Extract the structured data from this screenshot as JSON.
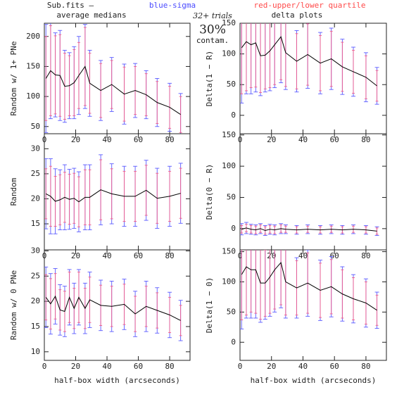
{
  "header": {
    "source": "Sub.fits  –",
    "legend_blue": "blue-sigma",
    "legend_red": "red-upper/lower quartile",
    "left_title": "average medians",
    "right_title": "delta plots",
    "trials": "32+ trials",
    "contam_pct": "30%",
    "contam": "contam."
  },
  "chart_data": [
    {
      "type": "line",
      "ylabel": "Random w/ 1+ PNe",
      "xlim": [
        0,
        93
      ],
      "xticks": [
        0,
        20,
        40,
        60,
        80
      ],
      "ylim": [
        38,
        222
      ],
      "yticks": [
        50,
        100,
        150,
        200
      ],
      "x": [
        1,
        4,
        7,
        10,
        13,
        16,
        19,
        22,
        26,
        29,
        36,
        43,
        51,
        58,
        65,
        72,
        80,
        87
      ],
      "series": [
        {
          "color": "#000000",
          "values": [
            130,
            143,
            136,
            135,
            117,
            118,
            123,
            135,
            150,
            122,
            110,
            120,
            104,
            110,
            103,
            90,
            82,
            70
          ],
          "sigma": [
            90,
            80,
            70,
            75,
            60,
            55,
            60,
            65,
            70,
            55,
            50,
            45,
            50,
            45,
            40,
            40,
            40,
            35
          ],
          "quartile": [
            70,
            75,
            65,
            68,
            55,
            50,
            55,
            55,
            65,
            50,
            45,
            40,
            45,
            40,
            35,
            35,
            35,
            30
          ]
        }
      ]
    },
    {
      "type": "line",
      "ylabel": "Delta(1 − R)",
      "xlim": [
        0,
        93
      ],
      "xticks": [
        0,
        20,
        40,
        60,
        80
      ],
      "ylim": [
        -30,
        150
      ],
      "yticks": [
        0,
        50,
        100,
        150
      ],
      "x": [
        1,
        4,
        7,
        10,
        13,
        16,
        19,
        22,
        26,
        29,
        36,
        43,
        51,
        58,
        65,
        72,
        80,
        87
      ],
      "series": [
        {
          "color": "#000000",
          "values": [
            110,
            120,
            115,
            118,
            97,
            98,
            105,
            115,
            128,
            102,
            88,
            99,
            85,
            92,
            79,
            71,
            62,
            48
          ],
          "sigma": [
            90,
            85,
            80,
            80,
            65,
            60,
            65,
            70,
            75,
            60,
            50,
            55,
            50,
            50,
            45,
            40,
            40,
            30
          ],
          "quartile": [
            75,
            80,
            70,
            72,
            60,
            55,
            60,
            65,
            70,
            55,
            45,
            50,
            45,
            45,
            40,
            35,
            35,
            25
          ]
        }
      ]
    },
    {
      "type": "line",
      "ylabel": "Random",
      "xlim": [
        0,
        93
      ],
      "xticks": [
        0,
        20,
        40,
        60,
        80
      ],
      "ylim": [
        9.8,
        33
      ],
      "yticks": [
        15,
        20,
        25,
        30
      ],
      "x": [
        1,
        4,
        7,
        10,
        13,
        16,
        19,
        22,
        26,
        29,
        36,
        43,
        51,
        58,
        65,
        72,
        80,
        87
      ],
      "series": [
        {
          "color": "#000000",
          "values": [
            21,
            20.5,
            19.5,
            19.8,
            20.3,
            19.9,
            20.1,
            19.4,
            20.3,
            20.3,
            21.8,
            21,
            20.5,
            20.5,
            21.7,
            20.1,
            20.5,
            21.1
          ],
          "sigma": [
            7,
            7.5,
            6.5,
            6,
            6.5,
            6,
            6,
            6,
            6.5,
            6.5,
            7,
            6,
            6,
            6,
            6,
            6,
            6,
            6
          ],
          "quartile": [
            5,
            6,
            5,
            5,
            5,
            5,
            5,
            5,
            5.5,
            5.5,
            6,
            5,
            5,
            5,
            5,
            5,
            5,
            5
          ]
        }
      ]
    },
    {
      "type": "line",
      "ylabel": "Delta(0 − R)",
      "xlim": [
        0,
        93
      ],
      "xticks": [
        0,
        20,
        40,
        60,
        80
      ],
      "ylim": [
        -34,
        152
      ],
      "yticks": [
        0,
        50,
        100,
        150
      ],
      "x": [
        1,
        4,
        7,
        10,
        13,
        16,
        19,
        22,
        26,
        29,
        36,
        43,
        51,
        58,
        65,
        72,
        80,
        87
      ],
      "series": [
        {
          "color": "#000000",
          "values": [
            -1,
            1,
            -1,
            -2,
            0,
            -3,
            -1,
            -2,
            0,
            -1,
            -2,
            -1,
            -2,
            -1,
            -2,
            -1,
            -2,
            -4
          ],
          "sigma": [
            9,
            9,
            8,
            8,
            8,
            8,
            8,
            8,
            8,
            7,
            7,
            7,
            7,
            7,
            7,
            7,
            7,
            7
          ],
          "quartile": [
            6,
            6,
            6,
            6,
            6,
            6,
            6,
            6,
            6,
            5,
            5,
            5,
            5,
            5,
            5,
            5,
            5,
            5
          ]
        }
      ]
    },
    {
      "type": "line",
      "ylabel": "Random w/ 0 PNe",
      "xlabel": "half-box width (arcseconds)",
      "xlim": [
        0,
        93
      ],
      "xticks": [
        0,
        20,
        40,
        60,
        80
      ],
      "ylim": [
        8.3,
        30.2
      ],
      "yticks": [
        10,
        15,
        20,
        25,
        30
      ],
      "x": [
        1,
        4,
        7,
        10,
        13,
        16,
        19,
        22,
        26,
        29,
        36,
        43,
        51,
        58,
        65,
        72,
        80,
        87
      ],
      "series": [
        {
          "color": "#000000",
          "values": [
            20.8,
            19.5,
            21,
            18.3,
            18,
            20.8,
            18.6,
            20.8,
            18.6,
            20.3,
            19.2,
            19,
            19.4,
            17.5,
            19,
            18.2,
            17.3,
            16.2
          ],
          "sigma": [
            6,
            6,
            5.5,
            5,
            5,
            5.5,
            5,
            5.5,
            5,
            5.5,
            5,
            5,
            5,
            4.5,
            5,
            4.5,
            4.5,
            4
          ],
          "quartile": [
            4.5,
            5,
            4.5,
            4,
            4,
            5,
            4,
            5,
            4,
            4.5,
            4,
            4,
            4,
            3.5,
            4,
            3.5,
            3.5,
            3
          ]
        }
      ]
    },
    {
      "type": "line",
      "ylabel": "Delta(1 − 0)",
      "xlabel": "half-box width (arcseconds)",
      "xlim": [
        0,
        93
      ],
      "xticks": [
        0,
        20,
        40,
        60,
        80
      ],
      "ylim": [
        -30,
        153
      ],
      "yticks": [
        0,
        50,
        100,
        150
      ],
      "x": [
        1,
        4,
        7,
        10,
        13,
        16,
        19,
        22,
        26,
        29,
        36,
        43,
        51,
        58,
        65,
        72,
        80,
        87
      ],
      "series": [
        {
          "color": "#000000",
          "values": [
            112,
            125,
            120,
            120,
            98,
            98,
            108,
            120,
            132,
            100,
            90,
            98,
            86,
            92,
            80,
            72,
            65,
            53
          ],
          "sigma": [
            90,
            85,
            80,
            80,
            65,
            60,
            65,
            70,
            75,
            60,
            50,
            55,
            50,
            50,
            45,
            40,
            40,
            30
          ],
          "quartile": [
            75,
            80,
            70,
            72,
            60,
            55,
            60,
            65,
            70,
            55,
            45,
            50,
            45,
            45,
            40,
            35,
            35,
            25
          ]
        }
      ]
    }
  ]
}
